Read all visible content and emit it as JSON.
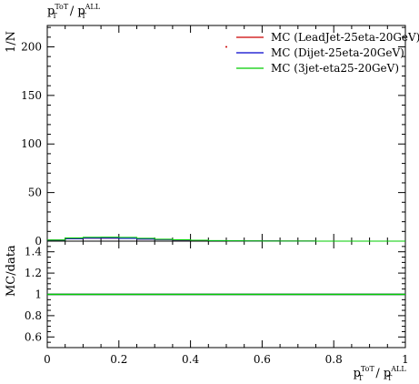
{
  "chart_data": [
    {
      "type": "line",
      "panel": "main",
      "title_main": "p",
      "title_sup": "ToT",
      "title_sub": "T",
      "title_sep": " / p",
      "title_sup2": "ALL",
      "title_sub2": "T",
      "ylabel": "1/N",
      "xlim": [
        0,
        1
      ],
      "ylim": [
        0,
        222
      ],
      "yticks": [
        0,
        50,
        100,
        150,
        200
      ],
      "ytick_labels": [
        "0",
        "50",
        "100",
        "150",
        "200"
      ],
      "xticks": [
        0,
        0.2,
        0.4,
        0.6,
        0.8,
        1
      ],
      "legend_position": "top-right",
      "series": [
        {
          "name": "MC (LeadJet-25eta-20GeV)",
          "color": "#cc0000",
          "x": [
            0.025,
            0.075,
            0.125,
            0.175,
            0.225,
            0.275,
            0.325,
            0.375,
            0.425,
            0.475,
            0.525,
            0.575,
            0.625,
            0.675,
            0.725,
            0.775,
            0.825,
            0.875,
            0.925,
            0.975
          ],
          "y": [
            1.0,
            2.5,
            3.0,
            3.0,
            2.8,
            2.2,
            1.7,
            1.2,
            0.8,
            0.5,
            0.35,
            0.25,
            0.15,
            0.1,
            0.06,
            0.04,
            0.02,
            0.01,
            0.005,
            0.0
          ],
          "marker_x": 0.5,
          "marker_y": 200
        },
        {
          "name": "MC (Dijet-25eta-20GeV)",
          "color": "#0000cc",
          "x": [
            0.025,
            0.075,
            0.125,
            0.175,
            0.225,
            0.275,
            0.325,
            0.375,
            0.425,
            0.475,
            0.525,
            0.575,
            0.625,
            0.675,
            0.725,
            0.775,
            0.825,
            0.875,
            0.925,
            0.975
          ],
          "y": [
            1.0,
            2.6,
            3.1,
            3.0,
            2.8,
            2.2,
            1.7,
            1.2,
            0.8,
            0.5,
            0.35,
            0.25,
            0.15,
            0.1,
            0.06,
            0.04,
            0.02,
            0.01,
            0.005,
            0.0
          ]
        },
        {
          "name": "MC (3jet-eta25-20GeV)",
          "color": "#00cc00",
          "x": [
            0.025,
            0.075,
            0.125,
            0.175,
            0.225,
            0.275,
            0.325,
            0.375,
            0.425,
            0.475,
            0.525,
            0.575,
            0.625,
            0.675,
            0.725,
            0.775,
            0.825,
            0.875,
            0.925,
            0.975
          ],
          "y": [
            1.2,
            3.3,
            4.0,
            4.1,
            3.8,
            2.9,
            2.0,
            1.4,
            0.9,
            0.55,
            0.35,
            0.2,
            0.12,
            0.08,
            0.05,
            0.03,
            0.015,
            0.008,
            0.004,
            0.0
          ]
        }
      ]
    },
    {
      "type": "line",
      "panel": "ratio",
      "ylabel": "MC/data",
      "xlabel_main": "p",
      "xlabel_sup": "ToT",
      "xlabel_sub": "T",
      "xlabel_sep": " / p",
      "xlabel_sup2": "ALL",
      "xlabel_sub2": "T",
      "xlim": [
        0,
        1
      ],
      "ylim": [
        0.5,
        1.5
      ],
      "yticks": [
        0.6,
        0.8,
        1.0,
        1.2,
        1.4
      ],
      "ytick_labels": [
        "0.6",
        "0.8",
        "1",
        "1.2",
        "1.4"
      ],
      "xticks": [
        0,
        0.2,
        0.4,
        0.6,
        0.8,
        1
      ],
      "xtick_labels": [
        "0",
        "0.2",
        "0.4",
        "0.6",
        "0.8",
        "1"
      ],
      "series": [
        {
          "color": "#cc0000",
          "x": [
            0,
            1
          ],
          "y": [
            1,
            1
          ]
        },
        {
          "color": "#0000cc",
          "x": [
            0,
            1
          ],
          "y": [
            1,
            1
          ]
        },
        {
          "color": "#00cc00",
          "x": [
            0,
            1
          ],
          "y": [
            1,
            1
          ]
        }
      ]
    }
  ]
}
